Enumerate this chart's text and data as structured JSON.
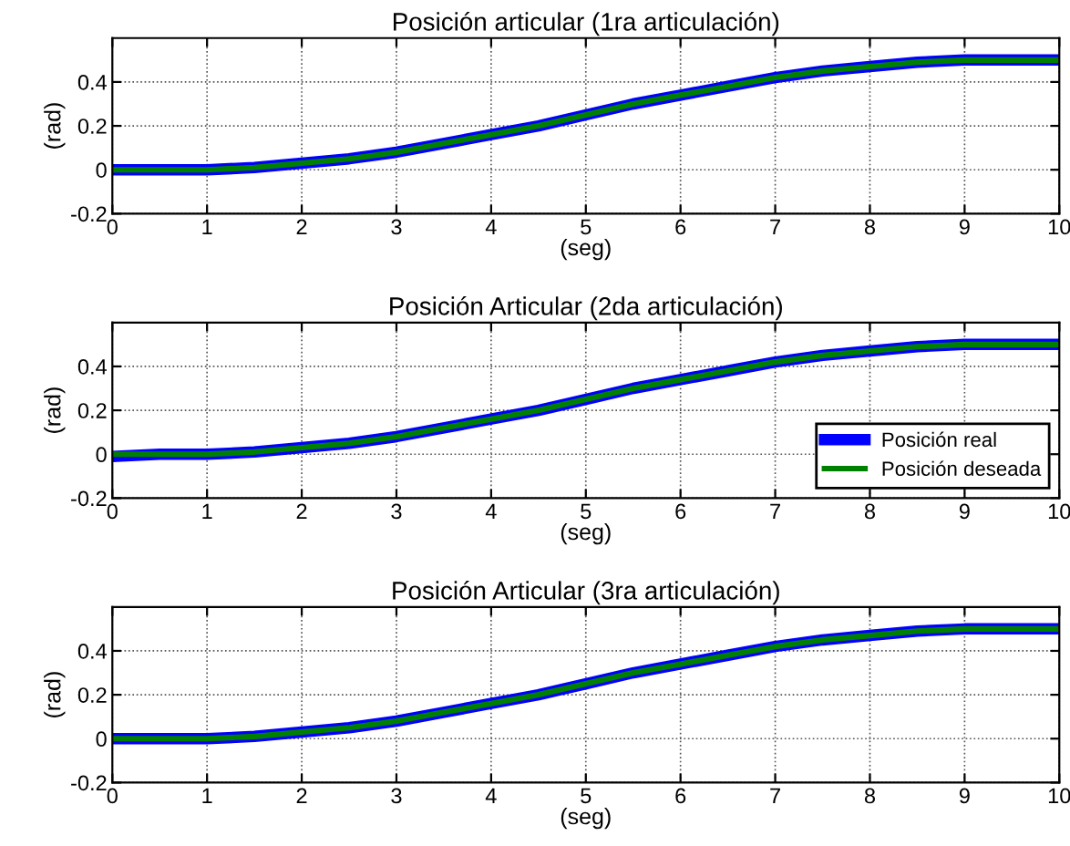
{
  "chart_data": [
    {
      "type": "line",
      "title": "Posición articular (1ra articulación)",
      "xlabel": "(seg)",
      "ylabel": "(rad)",
      "xlim": [
        0,
        10
      ],
      "ylim": [
        -0.2,
        0.6
      ],
      "xticks": [
        0,
        1,
        2,
        3,
        4,
        5,
        6,
        7,
        8,
        9,
        10
      ],
      "yticks": [
        -0.2,
        0,
        0.2,
        0.4
      ],
      "grid": true,
      "legend": false,
      "x": [
        0,
        0.5,
        1,
        1.5,
        2,
        2.5,
        3,
        3.5,
        4,
        4.5,
        5,
        5.5,
        6,
        6.5,
        7,
        7.5,
        8,
        8.5,
        9,
        9.5,
        10
      ],
      "series": [
        {
          "color": "#0000ff",
          "values": [
            0,
            0,
            0,
            0.01,
            0.03,
            0.05,
            0.08,
            0.12,
            0.16,
            0.2,
            0.25,
            0.3,
            0.34,
            0.38,
            0.42,
            0.45,
            0.47,
            0.49,
            0.5,
            0.5,
            0.5
          ]
        },
        {
          "color": "#008000",
          "values": [
            0,
            0,
            0,
            0.01,
            0.03,
            0.05,
            0.08,
            0.12,
            0.16,
            0.2,
            0.25,
            0.3,
            0.34,
            0.38,
            0.42,
            0.45,
            0.47,
            0.49,
            0.5,
            0.5,
            0.5
          ]
        }
      ]
    },
    {
      "type": "line",
      "title": "Posición Articular (2da articulación)",
      "xlabel": "(seg)",
      "ylabel": "(rad)",
      "xlim": [
        0,
        10
      ],
      "ylim": [
        -0.2,
        0.6
      ],
      "xticks": [
        0,
        1,
        2,
        3,
        4,
        5,
        6,
        7,
        8,
        9,
        10
      ],
      "yticks": [
        -0.2,
        0,
        0.2,
        0.4
      ],
      "grid": true,
      "legend": "bottom right",
      "x": [
        0,
        0.5,
        1,
        1.5,
        2,
        2.5,
        3,
        3.5,
        4,
        4.5,
        5,
        5.5,
        6,
        6.5,
        7,
        7.5,
        8,
        8.5,
        9,
        9.5,
        10
      ],
      "series": [
        {
          "name": "Posición real",
          "color": "#0000ff",
          "values": [
            -0.01,
            0,
            0,
            0.01,
            0.03,
            0.05,
            0.08,
            0.12,
            0.16,
            0.2,
            0.25,
            0.3,
            0.34,
            0.38,
            0.42,
            0.45,
            0.47,
            0.49,
            0.5,
            0.5,
            0.5
          ]
        },
        {
          "name": "Posición deseada",
          "color": "#008000",
          "values": [
            0,
            0,
            0,
            0.01,
            0.03,
            0.05,
            0.08,
            0.12,
            0.16,
            0.2,
            0.25,
            0.3,
            0.34,
            0.38,
            0.42,
            0.45,
            0.47,
            0.49,
            0.5,
            0.5,
            0.5
          ]
        }
      ]
    },
    {
      "type": "line",
      "title": "Posición Articular (3ra articulación)",
      "xlabel": "(seg)",
      "ylabel": "(rad)",
      "xlim": [
        0,
        10
      ],
      "ylim": [
        -0.2,
        0.6
      ],
      "xticks": [
        0,
        1,
        2,
        3,
        4,
        5,
        6,
        7,
        8,
        9,
        10
      ],
      "yticks": [
        -0.2,
        0,
        0.2,
        0.4
      ],
      "grid": true,
      "legend": false,
      "x": [
        0,
        0.5,
        1,
        1.5,
        2,
        2.5,
        3,
        3.5,
        4,
        4.5,
        5,
        5.5,
        6,
        6.5,
        7,
        7.5,
        8,
        8.5,
        9,
        9.5,
        10
      ],
      "series": [
        {
          "color": "#0000ff",
          "values": [
            0,
            0,
            0,
            0.01,
            0.03,
            0.05,
            0.08,
            0.12,
            0.16,
            0.2,
            0.25,
            0.3,
            0.34,
            0.38,
            0.42,
            0.45,
            0.47,
            0.49,
            0.5,
            0.5,
            0.5
          ]
        },
        {
          "color": "#008000",
          "values": [
            0,
            0,
            0,
            0.01,
            0.03,
            0.05,
            0.08,
            0.12,
            0.16,
            0.2,
            0.25,
            0.3,
            0.34,
            0.38,
            0.42,
            0.45,
            0.47,
            0.49,
            0.5,
            0.5,
            0.5
          ]
        }
      ]
    }
  ]
}
